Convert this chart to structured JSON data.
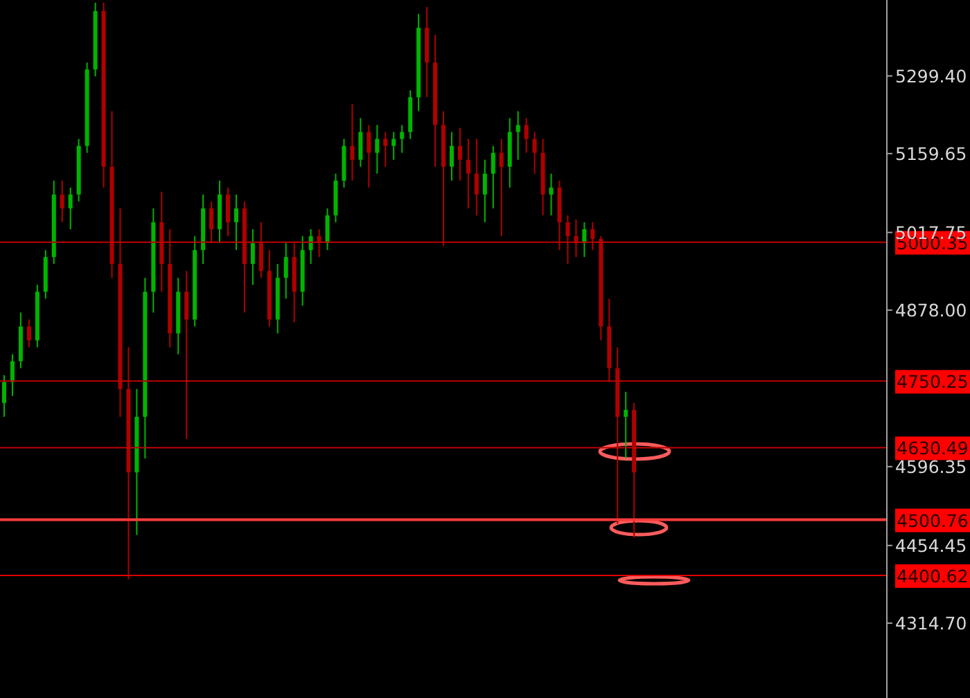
{
  "chart_data": {
    "type": "candlestick",
    "categories": [
      null,
      null,
      null,
      null,
      null,
      null,
      null,
      null,
      null,
      null,
      null,
      null,
      null,
      null,
      null,
      null,
      null,
      null,
      null,
      null,
      null,
      null,
      null,
      null,
      null,
      null,
      null,
      null,
      null,
      null,
      null,
      null,
      null,
      null,
      null,
      null,
      null,
      null,
      null,
      null,
      null,
      null,
      null,
      null,
      null,
      null,
      null,
      null,
      null,
      null,
      null,
      null,
      null,
      null,
      null,
      null,
      null,
      null,
      null,
      null,
      null,
      null,
      null,
      null,
      null,
      null,
      null,
      null,
      null,
      null,
      null,
      null,
      null,
      null,
      null,
      null,
      null,
      null,
      null,
      null,
      null,
      null,
      null,
      null,
      null,
      null,
      null,
      null,
      null,
      null,
      null,
      null,
      null,
      null,
      null,
      null,
      null,
      null,
      null,
      null,
      null,
      null,
      null,
      null,
      null,
      null,
      null
    ],
    "ohlc": [
      [
        4711,
        4761,
        4686,
        4748.5
      ],
      [
        4748.5,
        4798.5,
        4723.5,
        4786
      ],
      [
        4786,
        4873.5,
        4773.5,
        4848.5
      ],
      [
        4848.5,
        4861,
        4811,
        4823.5
      ],
      [
        4823.5,
        4923.5,
        4811,
        4911
      ],
      [
        4911,
        4986,
        4898.5,
        4973.5
      ],
      [
        4973.5,
        5111,
        4961,
        5086
      ],
      [
        5086,
        5111,
        5036,
        5061
      ],
      [
        5061,
        5098.5,
        5023.5,
        5086
      ],
      [
        5086,
        5186,
        5073.5,
        5173.5
      ],
      [
        5173.5,
        5323.5,
        5161,
        5311
      ],
      [
        5311,
        5431,
        5298.5,
        5416
      ],
      [
        5416,
        5431,
        5098.5,
        5136
      ],
      [
        5136,
        5236,
        4936,
        4961
      ],
      [
        4961,
        5061,
        4686,
        4736
      ],
      [
        4736,
        4811,
        4393.5,
        4586
      ],
      [
        4586,
        4736,
        4473.5,
        4686
      ],
      [
        4686,
        4936,
        4611,
        4911
      ],
      [
        4911,
        5061,
        4873.5,
        5036
      ],
      [
        5036,
        5091,
        4911,
        4961
      ],
      [
        4961,
        5023.5,
        4811,
        4836
      ],
      [
        4836,
        4936,
        4798.5,
        4911
      ],
      [
        4911,
        4948.5,
        4646,
        4861
      ],
      [
        4861,
        5011,
        4848.5,
        4986
      ],
      [
        4986,
        5086,
        4961,
        5061
      ],
      [
        5061,
        5073.5,
        4998.5,
        5023.5
      ],
      [
        5023.5,
        5111,
        4998.5,
        5086
      ],
      [
        5086,
        5098.5,
        5011,
        5036
      ],
      [
        5036,
        5086,
        4986,
        5061
      ],
      [
        5061,
        5073.5,
        4873.5,
        4961
      ],
      [
        4961,
        5023.5,
        4923.5,
        4998.5
      ],
      [
        4998.5,
        5036,
        4936,
        4948.5
      ],
      [
        4948.5,
        4986,
        4848.5,
        4861
      ],
      [
        4861,
        4961,
        4836,
        4936
      ],
      [
        4936,
        4998.5,
        4898.5,
        4973.5
      ],
      [
        4973.5,
        4998.5,
        4856,
        4911
      ],
      [
        4911,
        5011,
        4886,
        4986
      ],
      [
        4986,
        5023.5,
        4961,
        5011
      ],
      [
        5011,
        5023.5,
        4973.5,
        4998.5
      ],
      [
        4998.5,
        5061,
        4986,
        5048.5
      ],
      [
        5048.5,
        5123.5,
        5036,
        5111
      ],
      [
        5111,
        5186,
        5098.5,
        5173.5
      ],
      [
        5173.5,
        5248.5,
        5111,
        5148.5
      ],
      [
        5148.5,
        5223.5,
        5136,
        5198.5
      ],
      [
        5198.5,
        5211,
        5098.5,
        5161
      ],
      [
        5161,
        5211,
        5123.5,
        5186
      ],
      [
        5186,
        5198.5,
        5136,
        5173.5
      ],
      [
        5173.5,
        5198.5,
        5148.5,
        5186
      ],
      [
        5186,
        5211,
        5161,
        5198.5
      ],
      [
        5198.5,
        5273.5,
        5186,
        5261
      ],
      [
        5261,
        5411,
        5236,
        5386
      ],
      [
        5386,
        5423.5,
        5261,
        5323.5
      ],
      [
        5323.5,
        5373.5,
        5136,
        5211
      ],
      [
        5211,
        5236,
        4993.5,
        5136
      ],
      [
        5136,
        5198.5,
        5111,
        5173.5
      ],
      [
        5173.5,
        5206,
        5111,
        5148.5
      ],
      [
        5148.5,
        5186,
        5061,
        5123.5
      ],
      [
        5123.5,
        5186,
        5048.5,
        5086
      ],
      [
        5086,
        5148.5,
        5036,
        5123.5
      ],
      [
        5123.5,
        5173.5,
        5061,
        5161
      ],
      [
        5161,
        5186,
        5011,
        5136
      ],
      [
        5136,
        5223.5,
        5098.5,
        5198.5
      ],
      [
        5198.5,
        5236,
        5148.5,
        5211
      ],
      [
        5211,
        5223.5,
        5161,
        5186
      ],
      [
        5186,
        5198.5,
        5123.5,
        5161
      ],
      [
        5161,
        5186,
        5048.5,
        5086
      ],
      [
        5086,
        5123.5,
        5048.5,
        5098.5
      ],
      [
        5098.5,
        5111,
        4986,
        5036
      ],
      [
        5036,
        5048.5,
        4961,
        5011
      ],
      [
        5011,
        5041,
        4973.5,
        4998.5
      ],
      [
        4998.5,
        5036,
        4973.5,
        5023.5
      ],
      [
        5023.5,
        5036,
        4986,
        5006
      ],
      [
        5006,
        5011,
        4823.5,
        4848.5
      ],
      [
        4848.5,
        4898.5,
        4748.5,
        4773.5
      ],
      [
        4773.5,
        4811,
        4493.5,
        4686
      ],
      [
        4686,
        4731,
        4611,
        4698.5
      ],
      [
        4698.5,
        4711,
        4468.5,
        4586
      ],
      null,
      null,
      null,
      null,
      null,
      null,
      null,
      null,
      null,
      null,
      null,
      null,
      null,
      null,
      null,
      null,
      null,
      null,
      null,
      null,
      null,
      null,
      null,
      null,
      null,
      null,
      null,
      null,
      null,
      null
    ],
    "colors": [
      "#00b400",
      "#00b400",
      "#00b400",
      "#b00000",
      "#00b400",
      "#00b400",
      "#00b400",
      "#b00000",
      "#00b400",
      "#00b400",
      "#00b400",
      "#00b400",
      "#b00000",
      "#b00000",
      "#b00000",
      "#b00000",
      "#00b400",
      "#00b400",
      "#00b400",
      "#b00000",
      "#b00000",
      "#00b400",
      "#b00000",
      "#00b400",
      "#00b400",
      "#b00000",
      "#00b400",
      "#b00000",
      "#00b400",
      "#b00000",
      "#00b400",
      "#b00000",
      "#b00000",
      "#00b400",
      "#00b400",
      "#b00000",
      "#00b400",
      "#00b400",
      "#b00000",
      "#00b400",
      "#00b400",
      "#00b400",
      "#b00000",
      "#00b400",
      "#b00000",
      "#00b400",
      "#b00000",
      "#00b400",
      "#00b400",
      "#00b400",
      "#00b400",
      "#b00000",
      "#b00000",
      "#b00000",
      "#00b400",
      "#b00000",
      "#b00000",
      "#b00000",
      "#00b400",
      "#00b400",
      "#b00000",
      "#00b400",
      "#00b400",
      "#b00000",
      "#b00000",
      "#b00000",
      "#00b400",
      "#b00000",
      "#b00000",
      "#b00000",
      "#00b400",
      "#b00000",
      "#b00000",
      "#b00000",
      "#b00000",
      "#00b400",
      "#b00000",
      null,
      null,
      null,
      null,
      null,
      null,
      null,
      null,
      null,
      null,
      null,
      null,
      null,
      null,
      null,
      null,
      null,
      null,
      null,
      null,
      null,
      null,
      null,
      null,
      null,
      null,
      null,
      null,
      null,
      null
    ],
    "ylim": [
      4180,
      5436
    ],
    "yticks": [
      {
        "value": 5299.4,
        "label": "5299.40"
      },
      {
        "value": 5159.65,
        "label": "5159.65"
      },
      {
        "value": 5017.75,
        "label": "5017.75"
      },
      {
        "value": 4878,
        "label": "4878.00"
      },
      {
        "value": 4596.35,
        "label": "4596.35"
      },
      {
        "value": 4454.45,
        "label": "4454.45"
      },
      {
        "value": 4314.7,
        "label": "4314.70"
      }
    ],
    "ref_lines": [
      {
        "axis": "y",
        "value": 5000.35,
        "label": "5000.35",
        "color": "#c00000"
      },
      {
        "axis": "y",
        "value": 4750.25,
        "label": "4750.25",
        "color": "#c00000"
      },
      {
        "axis": "y",
        "value": 4630.49,
        "label": "4630.49",
        "color": "#c00000"
      },
      {
        "axis": "y",
        "value": 4500.76,
        "label": "4500.76",
        "color": "#ff3b3b"
      },
      {
        "axis": "y",
        "value": 4400.62,
        "label": "4400.62",
        "color": "#e00000"
      }
    ],
    "tick_labels": "y"
  }
}
